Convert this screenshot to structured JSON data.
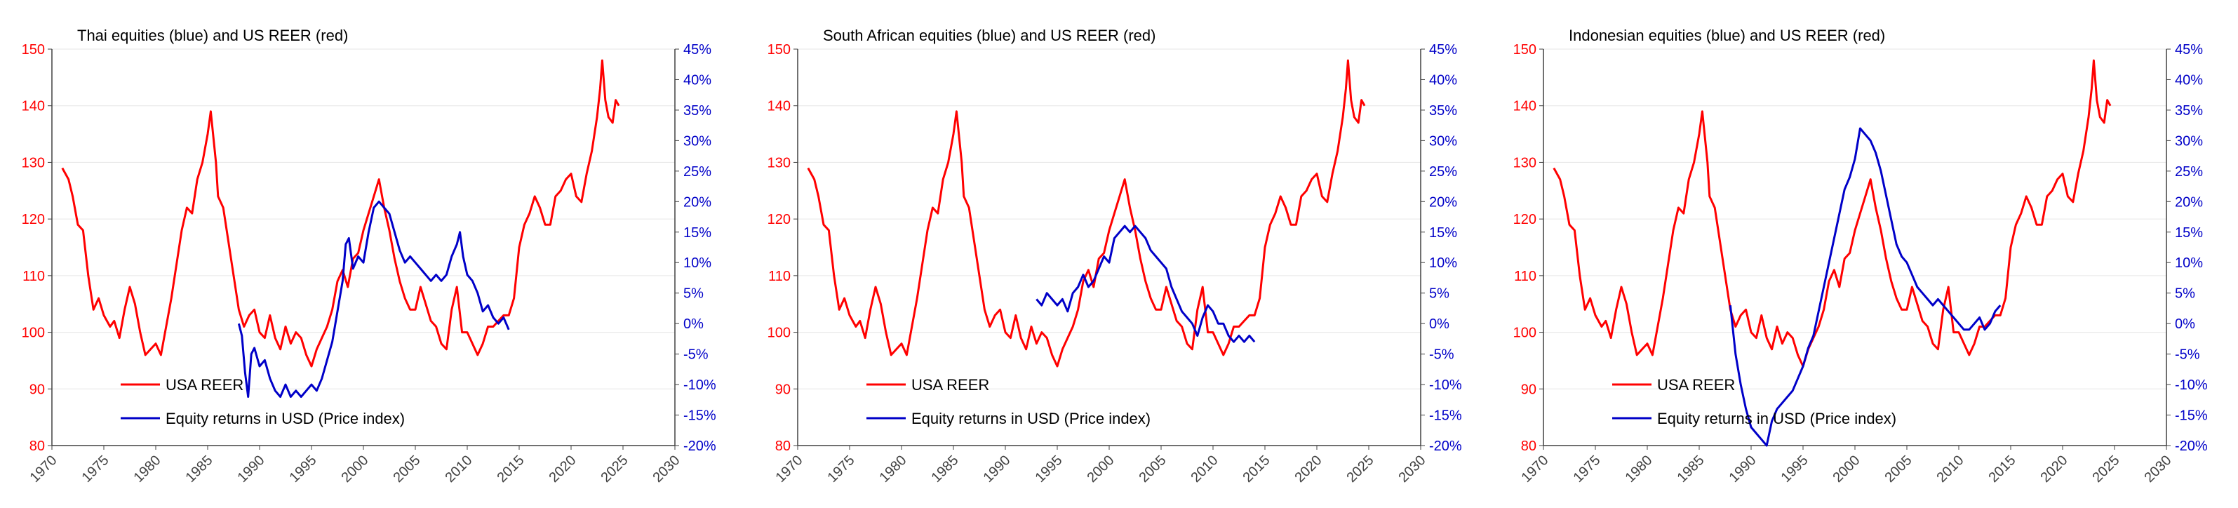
{
  "colors": {
    "reer": "#ff0000",
    "equity": "#0000c8",
    "axis": "#404040",
    "grid": "#e6e6e6",
    "title": "#000000",
    "bg": "#ffffff"
  },
  "x_ticks": [
    1970,
    1975,
    1980,
    1985,
    1990,
    1995,
    2000,
    2005,
    2010,
    2015,
    2020,
    2025,
    2030
  ],
  "left_ticks": [
    80,
    90,
    100,
    110,
    120,
    130,
    140,
    150
  ],
  "right_ticks": [
    "-20%",
    "-15%",
    "-10%",
    "-5%",
    "0%",
    "5%",
    "10%",
    "15%",
    "20%",
    "25%",
    "30%",
    "35%",
    "40%",
    "45%"
  ],
  "reer_series": [
    [
      1971,
      129
    ],
    [
      1971.6,
      127
    ],
    [
      1972,
      124
    ],
    [
      1972.5,
      119
    ],
    [
      1973,
      118
    ],
    [
      1973.5,
      110
    ],
    [
      1974,
      104
    ],
    [
      1974.5,
      106
    ],
    [
      1975,
      103
    ],
    [
      1975.6,
      101
    ],
    [
      1976,
      102
    ],
    [
      1976.5,
      99
    ],
    [
      1977,
      104
    ],
    [
      1977.5,
      108
    ],
    [
      1978,
      105
    ],
    [
      1978.5,
      100
    ],
    [
      1979,
      96
    ],
    [
      1979.5,
      97
    ],
    [
      1980,
      98
    ],
    [
      1980.5,
      96
    ],
    [
      1981,
      101
    ],
    [
      1981.5,
      106
    ],
    [
      1982,
      112
    ],
    [
      1982.5,
      118
    ],
    [
      1983,
      122
    ],
    [
      1983.5,
      121
    ],
    [
      1984,
      127
    ],
    [
      1984.5,
      130
    ],
    [
      1985,
      135
    ],
    [
      1985.3,
      139
    ],
    [
      1985.8,
      130
    ],
    [
      1986,
      124
    ],
    [
      1986.5,
      122
    ],
    [
      1987,
      116
    ],
    [
      1987.5,
      110
    ],
    [
      1988,
      104
    ],
    [
      1988.5,
      101
    ],
    [
      1989,
      103
    ],
    [
      1989.5,
      104
    ],
    [
      1990,
      100
    ],
    [
      1990.5,
      99
    ],
    [
      1991,
      103
    ],
    [
      1991.5,
      99
    ],
    [
      1992,
      97
    ],
    [
      1992.5,
      101
    ],
    [
      1993,
      98
    ],
    [
      1993.5,
      100
    ],
    [
      1994,
      99
    ],
    [
      1994.5,
      96
    ],
    [
      1995,
      94
    ],
    [
      1995.5,
      97
    ],
    [
      1996,
      99
    ],
    [
      1996.5,
      101
    ],
    [
      1997,
      104
    ],
    [
      1997.5,
      109
    ],
    [
      1998,
      111
    ],
    [
      1998.5,
      108
    ],
    [
      1999,
      113
    ],
    [
      1999.5,
      114
    ],
    [
      2000,
      118
    ],
    [
      2000.5,
      121
    ],
    [
      2001,
      124
    ],
    [
      2001.5,
      127
    ],
    [
      2002,
      122
    ],
    [
      2002.5,
      118
    ],
    [
      2003,
      113
    ],
    [
      2003.5,
      109
    ],
    [
      2004,
      106
    ],
    [
      2004.5,
      104
    ],
    [
      2005,
      104
    ],
    [
      2005.5,
      108
    ],
    [
      2006,
      105
    ],
    [
      2006.5,
      102
    ],
    [
      2007,
      101
    ],
    [
      2007.5,
      98
    ],
    [
      2008,
      97
    ],
    [
      2008.5,
      104
    ],
    [
      2009,
      108
    ],
    [
      2009.5,
      100
    ],
    [
      2010,
      100
    ],
    [
      2010.5,
      98
    ],
    [
      2011,
      96
    ],
    [
      2011.5,
      98
    ],
    [
      2012,
      101
    ],
    [
      2012.5,
      101
    ],
    [
      2013,
      102
    ],
    [
      2013.5,
      103
    ],
    [
      2014,
      103
    ],
    [
      2014.5,
      106
    ],
    [
      2015,
      115
    ],
    [
      2015.5,
      119
    ],
    [
      2016,
      121
    ],
    [
      2016.5,
      124
    ],
    [
      2017,
      122
    ],
    [
      2017.5,
      119
    ],
    [
      2018,
      119
    ],
    [
      2018.5,
      124
    ],
    [
      2019,
      125
    ],
    [
      2019.5,
      127
    ],
    [
      2020,
      128
    ],
    [
      2020.5,
      124
    ],
    [
      2021,
      123
    ],
    [
      2021.5,
      128
    ],
    [
      2022,
      132
    ],
    [
      2022.5,
      138
    ],
    [
      2022.8,
      143
    ],
    [
      2023,
      148
    ],
    [
      2023.3,
      141
    ],
    [
      2023.6,
      138
    ],
    [
      2024,
      137
    ],
    [
      2024.3,
      141
    ],
    [
      2024.6,
      140
    ]
  ],
  "charts": [
    {
      "title": "Thai equities (blue) and US REER (red)",
      "legend": [
        "USA REER",
        "Equity returns in USD (Price index)"
      ],
      "equity_series": [
        [
          1988,
          0
        ],
        [
          1988.3,
          -2
        ],
        [
          1988.6,
          -8
        ],
        [
          1988.9,
          -12
        ],
        [
          1989.2,
          -5
        ],
        [
          1989.5,
          -4
        ],
        [
          1990,
          -7
        ],
        [
          1990.5,
          -6
        ],
        [
          1991,
          -9
        ],
        [
          1991.5,
          -11
        ],
        [
          1992,
          -12
        ],
        [
          1992.5,
          -10
        ],
        [
          1993,
          -12
        ],
        [
          1993.5,
          -11
        ],
        [
          1994,
          -12
        ],
        [
          1994.5,
          -11
        ],
        [
          1995,
          -10
        ],
        [
          1995.5,
          -11
        ],
        [
          1996,
          -9
        ],
        [
          1996.5,
          -6
        ],
        [
          1997,
          -3
        ],
        [
          1997.5,
          2
        ],
        [
          1998,
          7
        ],
        [
          1998.3,
          13
        ],
        [
          1998.6,
          14
        ],
        [
          1999,
          9
        ],
        [
          1999.5,
          11
        ],
        [
          2000,
          10
        ],
        [
          2000.5,
          15
        ],
        [
          2001,
          19
        ],
        [
          2001.5,
          20
        ],
        [
          2002,
          19
        ],
        [
          2002.5,
          18
        ],
        [
          2003,
          15
        ],
        [
          2003.5,
          12
        ],
        [
          2004,
          10
        ],
        [
          2004.5,
          11
        ],
        [
          2005,
          10
        ],
        [
          2005.5,
          9
        ],
        [
          2006,
          8
        ],
        [
          2006.5,
          7
        ],
        [
          2007,
          8
        ],
        [
          2007.5,
          7
        ],
        [
          2008,
          8
        ],
        [
          2008.5,
          11
        ],
        [
          2009,
          13
        ],
        [
          2009.3,
          15
        ],
        [
          2009.6,
          11
        ],
        [
          2010,
          8
        ],
        [
          2010.5,
          7
        ],
        [
          2011,
          5
        ],
        [
          2011.5,
          2
        ],
        [
          2012,
          3
        ],
        [
          2012.5,
          1
        ],
        [
          2013,
          0
        ],
        [
          2013.5,
          1
        ],
        [
          2014,
          -1
        ]
      ]
    },
    {
      "title": "South African equities (blue) and US REER (red)",
      "legend": [
        "USA REER",
        "Equity returns in USD (Price index)"
      ],
      "equity_series": [
        [
          1993,
          4
        ],
        [
          1993.5,
          3
        ],
        [
          1994,
          5
        ],
        [
          1994.5,
          4
        ],
        [
          1995,
          3
        ],
        [
          1995.5,
          4
        ],
        [
          1996,
          2
        ],
        [
          1996.5,
          5
        ],
        [
          1997,
          6
        ],
        [
          1997.5,
          8
        ],
        [
          1998,
          6
        ],
        [
          1998.5,
          7
        ],
        [
          1999,
          9
        ],
        [
          1999.5,
          11
        ],
        [
          2000,
          10
        ],
        [
          2000.5,
          14
        ],
        [
          2001,
          15
        ],
        [
          2001.5,
          16
        ],
        [
          2002,
          15
        ],
        [
          2002.5,
          16
        ],
        [
          2003,
          15
        ],
        [
          2003.5,
          14
        ],
        [
          2004,
          12
        ],
        [
          2004.5,
          11
        ],
        [
          2005,
          10
        ],
        [
          2005.5,
          9
        ],
        [
          2006,
          6
        ],
        [
          2006.5,
          4
        ],
        [
          2007,
          2
        ],
        [
          2007.5,
          1
        ],
        [
          2008,
          0
        ],
        [
          2008.5,
          -2
        ],
        [
          2009,
          1
        ],
        [
          2009.5,
          3
        ],
        [
          2010,
          2
        ],
        [
          2010.5,
          0
        ],
        [
          2011,
          0
        ],
        [
          2011.5,
          -2
        ],
        [
          2012,
          -3
        ],
        [
          2012.5,
          -2
        ],
        [
          2013,
          -3
        ],
        [
          2013.5,
          -2
        ],
        [
          2014,
          -3
        ]
      ]
    },
    {
      "title": "Indonesian equities (blue) and US REER (red)",
      "legend": [
        "USA REER",
        "Equity returns in USD (Price index)"
      ],
      "equity_series": [
        [
          1988,
          3
        ],
        [
          1988.5,
          -5
        ],
        [
          1989,
          -10
        ],
        [
          1989.5,
          -14
        ],
        [
          1990,
          -17
        ],
        [
          1990.5,
          -18
        ],
        [
          1991,
          -19
        ],
        [
          1991.5,
          -20
        ],
        [
          1992,
          -16
        ],
        [
          1992.5,
          -14
        ],
        [
          1993,
          -13
        ],
        [
          1993.5,
          -12
        ],
        [
          1994,
          -11
        ],
        [
          1994.5,
          -9
        ],
        [
          1995,
          -7
        ],
        [
          1995.5,
          -4
        ],
        [
          1996,
          -2
        ],
        [
          1996.5,
          2
        ],
        [
          1997,
          6
        ],
        [
          1997.5,
          10
        ],
        [
          1998,
          14
        ],
        [
          1998.5,
          18
        ],
        [
          1999,
          22
        ],
        [
          1999.5,
          24
        ],
        [
          2000,
          27
        ],
        [
          2000.5,
          32
        ],
        [
          2001,
          31
        ],
        [
          2001.5,
          30
        ],
        [
          2002,
          28
        ],
        [
          2002.5,
          25
        ],
        [
          2003,
          21
        ],
        [
          2003.5,
          17
        ],
        [
          2004,
          13
        ],
        [
          2004.5,
          11
        ],
        [
          2005,
          10
        ],
        [
          2005.5,
          8
        ],
        [
          2006,
          6
        ],
        [
          2006.5,
          5
        ],
        [
          2007,
          4
        ],
        [
          2007.5,
          3
        ],
        [
          2008,
          4
        ],
        [
          2008.5,
          3
        ],
        [
          2009,
          2
        ],
        [
          2009.5,
          1
        ],
        [
          2010,
          0
        ],
        [
          2010.5,
          -1
        ],
        [
          2011,
          -1
        ],
        [
          2011.5,
          0
        ],
        [
          2012,
          1
        ],
        [
          2012.5,
          -1
        ],
        [
          2013,
          0
        ],
        [
          2013.5,
          2
        ],
        [
          2014,
          3
        ]
      ]
    }
  ],
  "chart_data": [
    {
      "type": "line",
      "title": "Thai equities (blue) and US REER (red)",
      "xlabel": "",
      "ylabel": "",
      "xlim": [
        1970,
        2030
      ],
      "ylim": [
        80,
        150
      ],
      "y2lim": [
        -20,
        45
      ],
      "legend": "lower-left",
      "series": [
        {
          "name": "USA REER",
          "axis": "left",
          "color": "#ff0000"
        },
        {
          "name": "Equity returns in USD (Price index)",
          "axis": "right",
          "color": "#0000c8"
        }
      ]
    },
    {
      "type": "line",
      "title": "South African equities (blue) and US REER (red)",
      "xlabel": "",
      "ylabel": "",
      "xlim": [
        1970,
        2030
      ],
      "ylim": [
        80,
        150
      ],
      "y2lim": [
        -20,
        45
      ],
      "legend": "lower-left",
      "series": [
        {
          "name": "USA REER",
          "axis": "left",
          "color": "#ff0000"
        },
        {
          "name": "Equity returns in USD (Price index)",
          "axis": "right",
          "color": "#0000c8"
        }
      ]
    },
    {
      "type": "line",
      "title": "Indonesian equities (blue) and US REER (red)",
      "xlabel": "",
      "ylabel": "",
      "xlim": [
        1970,
        2030
      ],
      "ylim": [
        80,
        150
      ],
      "y2lim": [
        -20,
        45
      ],
      "legend": "lower-left",
      "series": [
        {
          "name": "USA REER",
          "axis": "left",
          "color": "#ff0000"
        },
        {
          "name": "Equity returns in USD (Price index)",
          "axis": "right",
          "color": "#0000c8"
        }
      ]
    }
  ]
}
